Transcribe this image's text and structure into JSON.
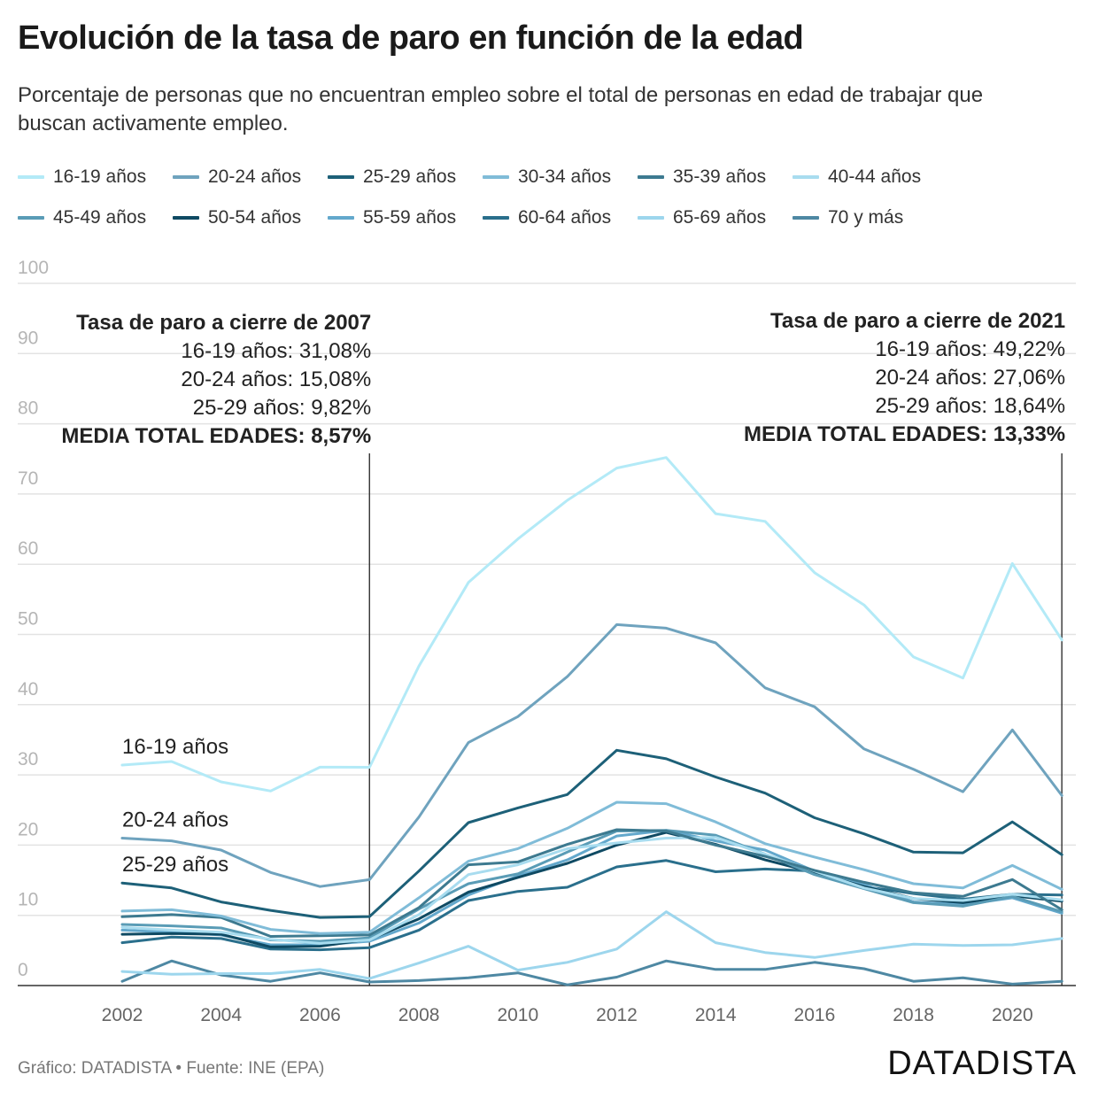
{
  "title": "Evolución de la tasa de paro en función de la edad",
  "subtitle": "Porcentaje de personas que no encuentran empleo sobre el total de personas en edad de trabajar que buscan activamente empleo.",
  "footer": {
    "credit": "Gráfico: DATADISTA • Fuente: INE (EPA)",
    "brand": "DATADISTA"
  },
  "chart_data": {
    "type": "line",
    "ylim": [
      0,
      100
    ],
    "yticks": [
      "0",
      "10",
      "20",
      "30",
      "40",
      "50",
      "60",
      "70",
      "80",
      "90",
      "100"
    ],
    "x": [
      2002,
      2003,
      2004,
      2005,
      2006,
      2007,
      2008,
      2009,
      2010,
      2011,
      2012,
      2013,
      2014,
      2015,
      2016,
      2017,
      2018,
      2019,
      2020,
      2021
    ],
    "xticks": [
      "2002",
      "2004",
      "2006",
      "2008",
      "2010",
      "2012",
      "2014",
      "2016",
      "2018",
      "2020"
    ],
    "series": [
      {
        "name": "16-19 años",
        "color": "#b3eaf7",
        "values": [
          31.4,
          31.9,
          29.0,
          27.7,
          31.1,
          31.08,
          45.5,
          57.4,
          63.6,
          69.1,
          73.7,
          75.2,
          67.2,
          66.1,
          58.8,
          54.2,
          46.8,
          43.8,
          60.1,
          49.22
        ]
      },
      {
        "name": "20-24 años",
        "color": "#6fa3be",
        "values": [
          21.0,
          20.6,
          19.3,
          16.1,
          14.1,
          15.08,
          24.0,
          34.6,
          38.3,
          44.0,
          51.4,
          50.9,
          48.8,
          42.4,
          39.7,
          33.7,
          30.8,
          27.6,
          36.4,
          27.06
        ]
      },
      {
        "name": "25-29 años",
        "color": "#1d6078",
        "values": [
          14.6,
          13.9,
          11.9,
          10.7,
          9.7,
          9.82,
          16.3,
          23.2,
          25.3,
          27.2,
          33.5,
          32.3,
          29.7,
          27.4,
          23.9,
          21.6,
          19.0,
          18.9,
          23.3,
          18.64
        ]
      },
      {
        "name": "30-34 años",
        "color": "#80bcd8",
        "values": [
          10.6,
          10.8,
          9.9,
          8.0,
          7.4,
          7.6,
          12.5,
          17.7,
          19.5,
          22.4,
          26.1,
          25.9,
          23.3,
          20.2,
          18.3,
          16.5,
          14.5,
          13.9,
          17.1,
          13.7
        ]
      },
      {
        "name": "35-39 años",
        "color": "#3d7a90",
        "values": [
          9.8,
          10.1,
          9.7,
          7.0,
          7.1,
          7.2,
          11.1,
          17.2,
          17.6,
          20.1,
          22.2,
          22.0,
          20.0,
          18.4,
          16.4,
          14.7,
          13.2,
          12.7,
          15.1,
          10.8
        ]
      },
      {
        "name": "40-44 años",
        "color": "#a8dcef",
        "values": [
          8.3,
          7.9,
          7.6,
          6.6,
          6.0,
          6.5,
          10.1,
          15.8,
          17.2,
          19.5,
          20.3,
          21.0,
          21.1,
          18.7,
          16.3,
          13.9,
          12.4,
          12.1,
          13.0,
          12.2
        ]
      },
      {
        "name": "45-49 años",
        "color": "#5a9cb6",
        "values": [
          8.7,
          8.5,
          8.2,
          6.5,
          6.3,
          6.8,
          10.9,
          14.5,
          15.9,
          19.0,
          22.0,
          22.1,
          21.4,
          18.7,
          15.8,
          13.8,
          11.8,
          11.3,
          12.7,
          10.5
        ]
      },
      {
        "name": "50-54 años",
        "color": "#0f4a63",
        "values": [
          7.3,
          7.4,
          7.3,
          5.5,
          5.6,
          6.6,
          9.5,
          13.3,
          15.4,
          17.4,
          20.0,
          21.8,
          20.1,
          17.9,
          16.1,
          14.1,
          12.4,
          11.8,
          12.8,
          12.0
        ]
      },
      {
        "name": "55-59 años",
        "color": "#63a8cc",
        "values": [
          7.9,
          7.6,
          7.2,
          5.8,
          5.8,
          6.3,
          8.9,
          12.9,
          15.6,
          17.9,
          21.3,
          22.1,
          20.6,
          19.3,
          16.3,
          14.4,
          11.9,
          11.5,
          12.5,
          10.3
        ]
      },
      {
        "name": "60-64 años",
        "color": "#2a6f8c",
        "values": [
          6.1,
          6.9,
          6.7,
          5.2,
          5.1,
          5.4,
          7.9,
          12.1,
          13.4,
          14.0,
          16.9,
          17.8,
          16.2,
          16.6,
          16.3,
          14.1,
          13.1,
          12.3,
          13.0,
          12.9
        ]
      },
      {
        "name": "65-69 años",
        "color": "#9dd6ed",
        "values": [
          2.0,
          1.6,
          1.7,
          1.7,
          2.3,
          1.0,
          3.2,
          5.6,
          2.2,
          3.3,
          5.2,
          10.5,
          6.1,
          4.7,
          4.0,
          5.0,
          5.9,
          5.7,
          5.8,
          6.7
        ]
      },
      {
        "name": "70 y más",
        "color": "#4e88a3",
        "values": [
          0.6,
          3.5,
          1.5,
          0.6,
          1.8,
          0.5,
          0.7,
          1.1,
          1.8,
          0.1,
          1.2,
          3.5,
          2.3,
          2.3,
          3.3,
          2.4,
          0.6,
          1.1,
          0.2,
          0.6
        ]
      }
    ],
    "series_labels": [
      "16-19 años",
      "20-24 años",
      "25-29 años"
    ],
    "annotations": [
      {
        "year": 2007,
        "title": "Tasa de paro a cierre de 2007",
        "lines": [
          "16-19 años: 31,08%",
          "20-24 años: 15,08%",
          "25-29 años: 9,82%"
        ],
        "total": "MEDIA TOTAL EDADES: 8,57%"
      },
      {
        "year": 2021,
        "title": "Tasa de paro a cierre de 2021",
        "lines": [
          "16-19 años: 49,22%",
          "20-24 años: 27,06%",
          "25-29 años: 18,64%"
        ],
        "total": "MEDIA TOTAL EDADES: 13,33%"
      }
    ]
  }
}
